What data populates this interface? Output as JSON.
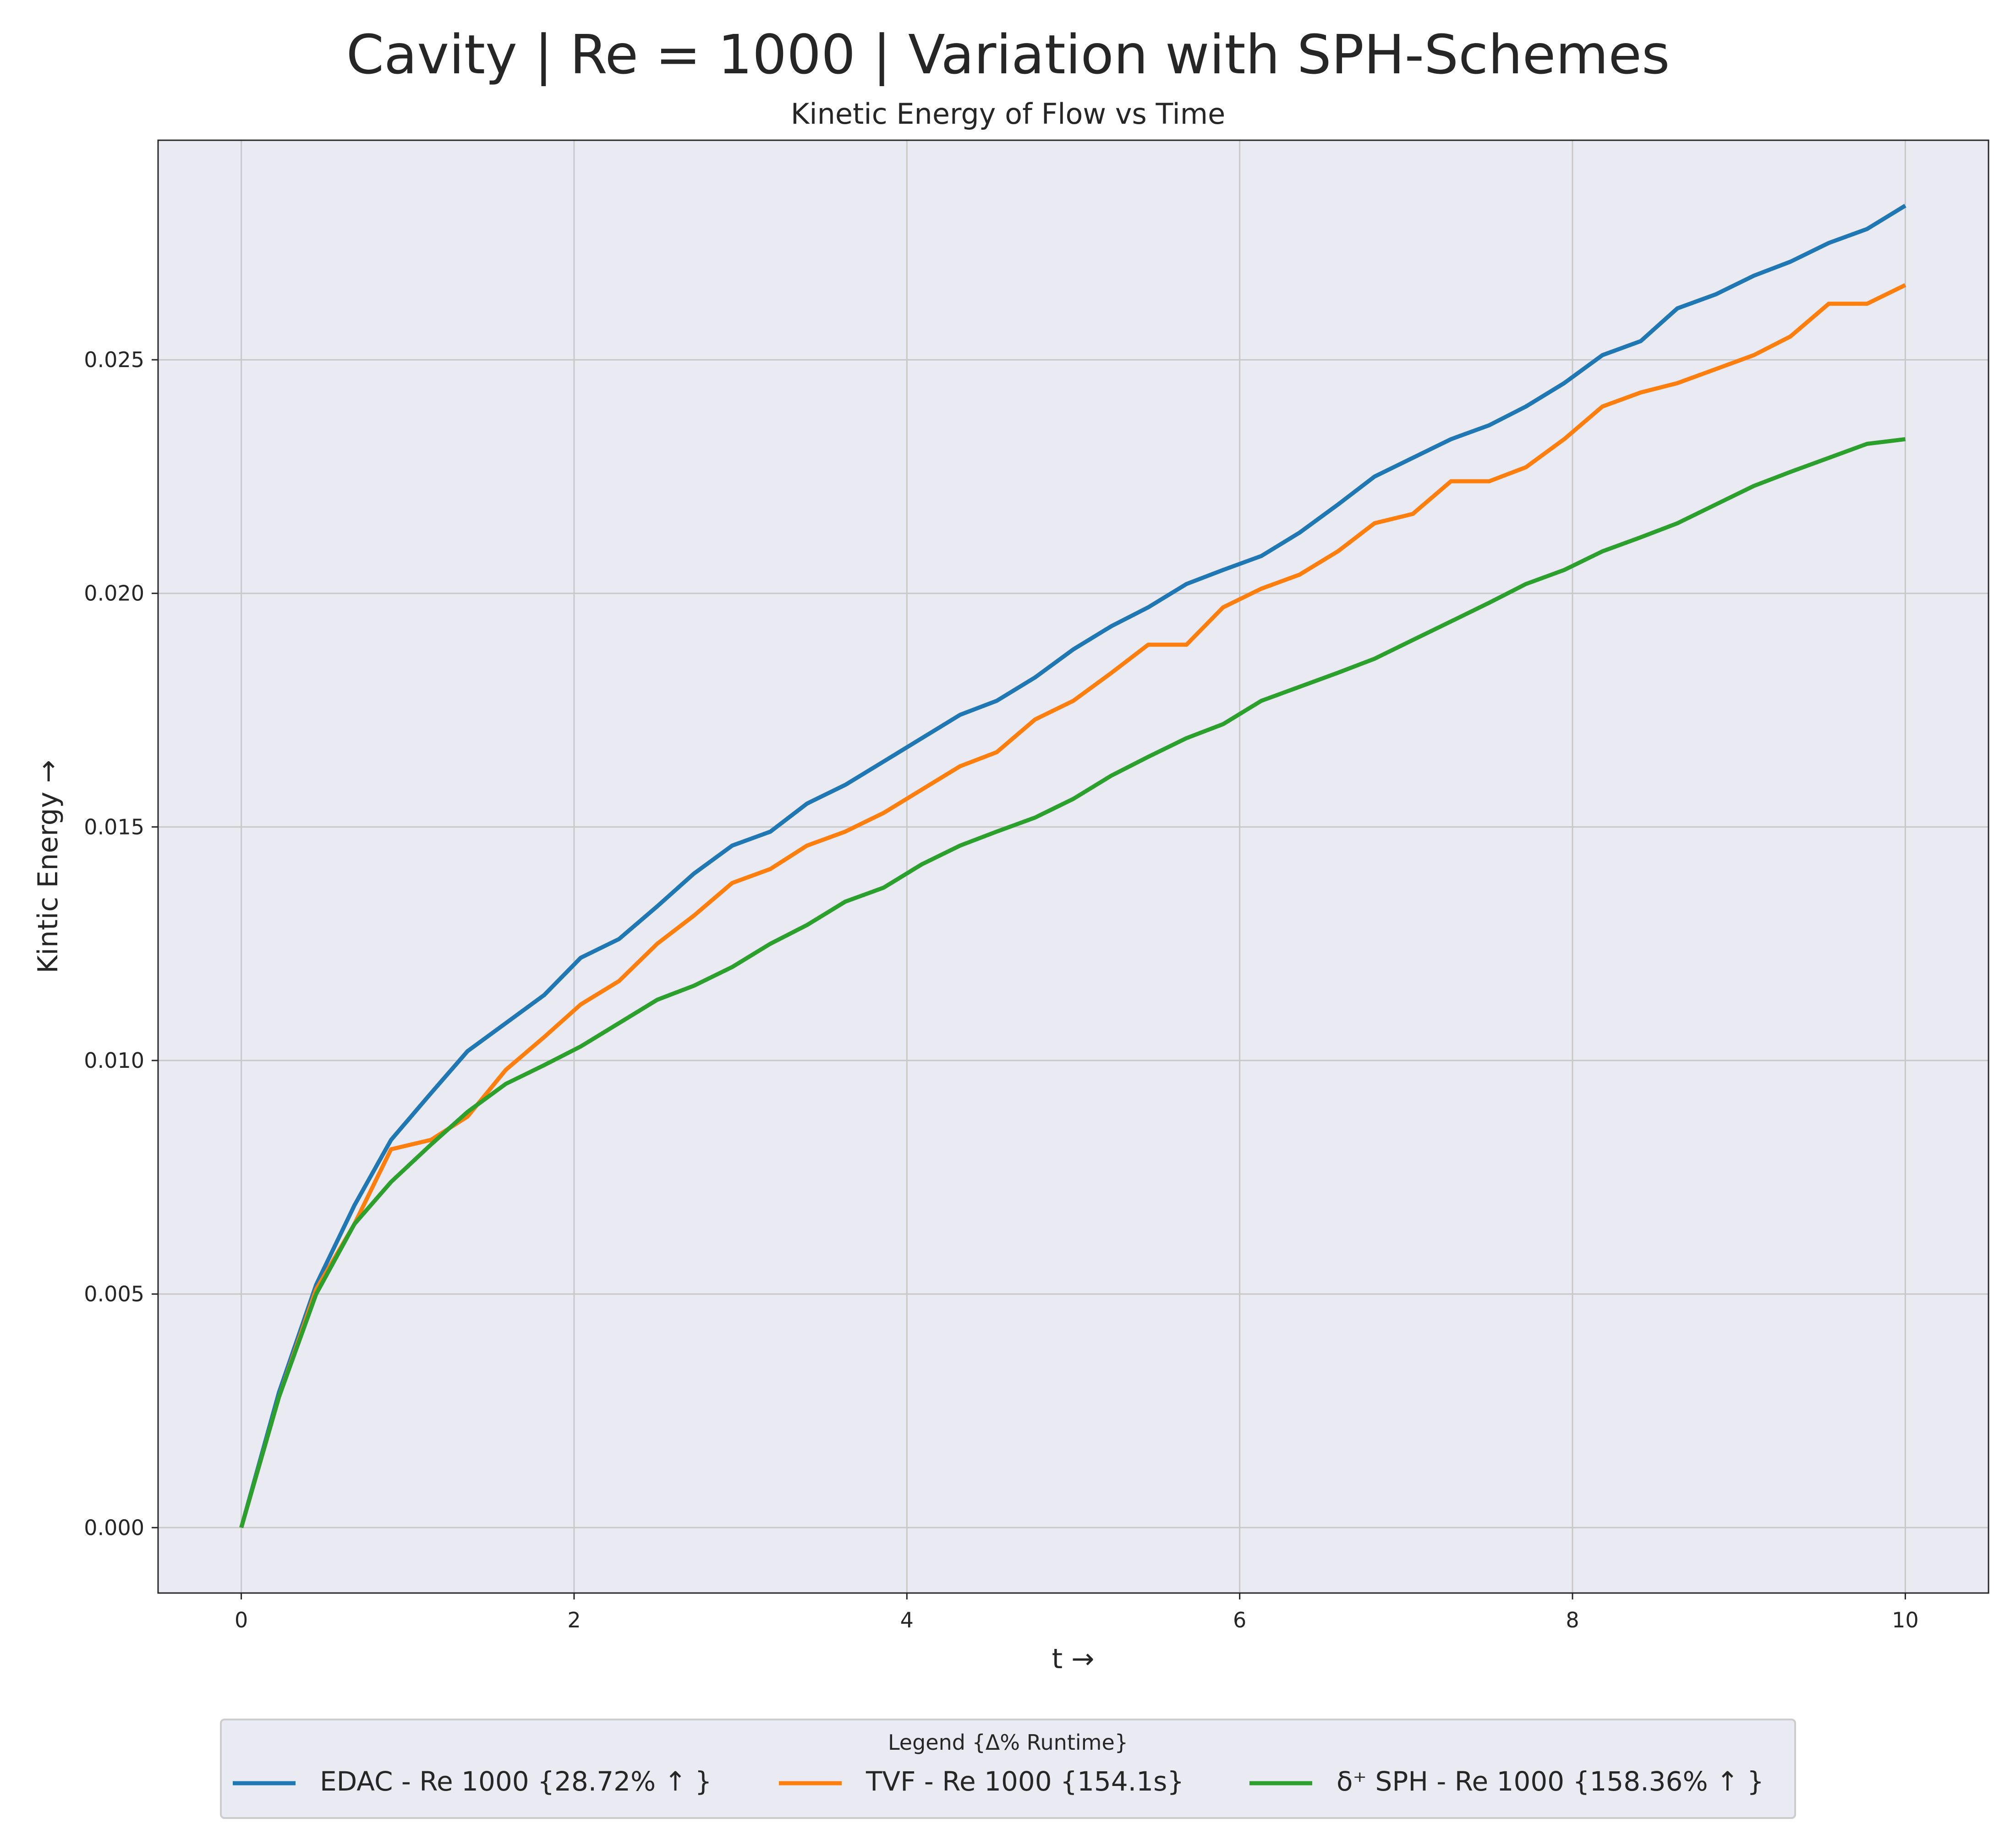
{
  "chart_data": {
    "type": "line",
    "title": "Cavity | Re = 1000 | Variation with SPH-Schemes",
    "subtitle": "Kinetic Energy of Flow vs Time",
    "xlabel": "t →",
    "ylabel": "Kintic Energy →",
    "xlim": [
      -0.5,
      10.5
    ],
    "ylim": [
      -0.0014,
      0.0297
    ],
    "xticks": [
      0,
      2,
      4,
      6,
      8,
      10
    ],
    "xtick_labels": [
      "0",
      "2",
      "4",
      "6",
      "8",
      "10"
    ],
    "yticks": [
      0.0,
      0.005,
      0.01,
      0.015,
      0.02,
      0.025
    ],
    "ytick_labels": [
      "0.000",
      "0.005",
      "0.010",
      "0.015",
      "0.020",
      "0.025"
    ],
    "grid": true,
    "background": "#eaeaf2",
    "legend": {
      "title": "Legend {Δ% Runtime}",
      "placement": "bottom-center",
      "columns": 3
    },
    "series": [
      {
        "name": "EDAC - Re 1000 {28.72% ↑ }",
        "color": "#1f77b4",
        "x": [
          0.0,
          0.227,
          0.45,
          0.68,
          0.9,
          1.14,
          1.36,
          1.59,
          1.82,
          2.04,
          2.27,
          2.5,
          2.72,
          2.95,
          3.18,
          3.4,
          3.63,
          3.86,
          4.09,
          4.32,
          4.54,
          4.77,
          5.0,
          5.23,
          5.45,
          5.68,
          5.9,
          6.13,
          6.36,
          6.59,
          6.81,
          7.04,
          7.27,
          7.5,
          7.72,
          7.95,
          8.18,
          8.41,
          8.63,
          8.86,
          9.09,
          9.31,
          9.54,
          9.77,
          10.0
        ],
        "y": [
          0.0,
          0.0029,
          0.0052,
          0.0069,
          0.0083,
          0.0093,
          0.0102,
          0.0108,
          0.0114,
          0.0122,
          0.0126,
          0.0133,
          0.014,
          0.0146,
          0.0149,
          0.0155,
          0.0159,
          0.0164,
          0.0169,
          0.0174,
          0.0177,
          0.0182,
          0.0188,
          0.0193,
          0.0197,
          0.0202,
          0.0205,
          0.0208,
          0.0213,
          0.0219,
          0.0225,
          0.0229,
          0.0233,
          0.0236,
          0.024,
          0.0245,
          0.0251,
          0.0254,
          0.0261,
          0.0264,
          0.0268,
          0.0271,
          0.0275,
          0.0278,
          0.0283
        ]
      },
      {
        "name": "TVF - Re 1000 {154.1s}",
        "color": "#ff7f0e",
        "x": [
          0.0,
          0.227,
          0.45,
          0.68,
          0.9,
          1.14,
          1.36,
          1.59,
          1.82,
          2.04,
          2.27,
          2.5,
          2.72,
          2.95,
          3.18,
          3.4,
          3.63,
          3.86,
          4.09,
          4.32,
          4.54,
          4.77,
          5.0,
          5.23,
          5.45,
          5.68,
          5.9,
          6.13,
          6.36,
          6.59,
          6.81,
          7.04,
          7.27,
          7.5,
          7.72,
          7.95,
          8.18,
          8.41,
          8.63,
          8.86,
          9.09,
          9.31,
          9.54,
          9.77,
          10.0
        ],
        "y": [
          0.0,
          0.0028,
          0.0051,
          0.0065,
          0.0081,
          0.0083,
          0.0088,
          0.0098,
          0.0105,
          0.0112,
          0.0117,
          0.0125,
          0.0131,
          0.0138,
          0.0141,
          0.0146,
          0.0149,
          0.0153,
          0.0158,
          0.0163,
          0.0166,
          0.0173,
          0.0177,
          0.0183,
          0.0189,
          0.0189,
          0.0197,
          0.0201,
          0.0204,
          0.0209,
          0.0215,
          0.0217,
          0.0224,
          0.0224,
          0.0227,
          0.0233,
          0.024,
          0.0243,
          0.0245,
          0.0248,
          0.0251,
          0.0255,
          0.0262,
          0.0262,
          0.0266
        ]
      },
      {
        "name": "δ⁺ SPH - Re 1000 {158.36% ↑ }",
        "color": "#2ca02c",
        "x": [
          0.0,
          0.227,
          0.45,
          0.68,
          0.9,
          1.14,
          1.36,
          1.59,
          1.82,
          2.04,
          2.27,
          2.5,
          2.72,
          2.95,
          3.18,
          3.4,
          3.63,
          3.86,
          4.09,
          4.32,
          4.54,
          4.77,
          5.0,
          5.23,
          5.45,
          5.68,
          5.9,
          6.13,
          6.36,
          6.59,
          6.81,
          7.04,
          7.27,
          7.5,
          7.72,
          7.95,
          8.18,
          8.41,
          8.63,
          8.86,
          9.09,
          9.31,
          9.54,
          9.77,
          10.0
        ],
        "y": [
          0.0,
          0.0028,
          0.005,
          0.0065,
          0.0074,
          0.0082,
          0.0089,
          0.0095,
          0.0099,
          0.0103,
          0.0108,
          0.0113,
          0.0116,
          0.012,
          0.0125,
          0.0129,
          0.0134,
          0.0137,
          0.0142,
          0.0146,
          0.0149,
          0.0152,
          0.0156,
          0.0161,
          0.0165,
          0.0169,
          0.0172,
          0.0177,
          0.018,
          0.0183,
          0.0186,
          0.019,
          0.0194,
          0.0198,
          0.0202,
          0.0205,
          0.0209,
          0.0212,
          0.0215,
          0.0219,
          0.0223,
          0.0226,
          0.0229,
          0.0232,
          0.0233
        ]
      }
    ]
  }
}
